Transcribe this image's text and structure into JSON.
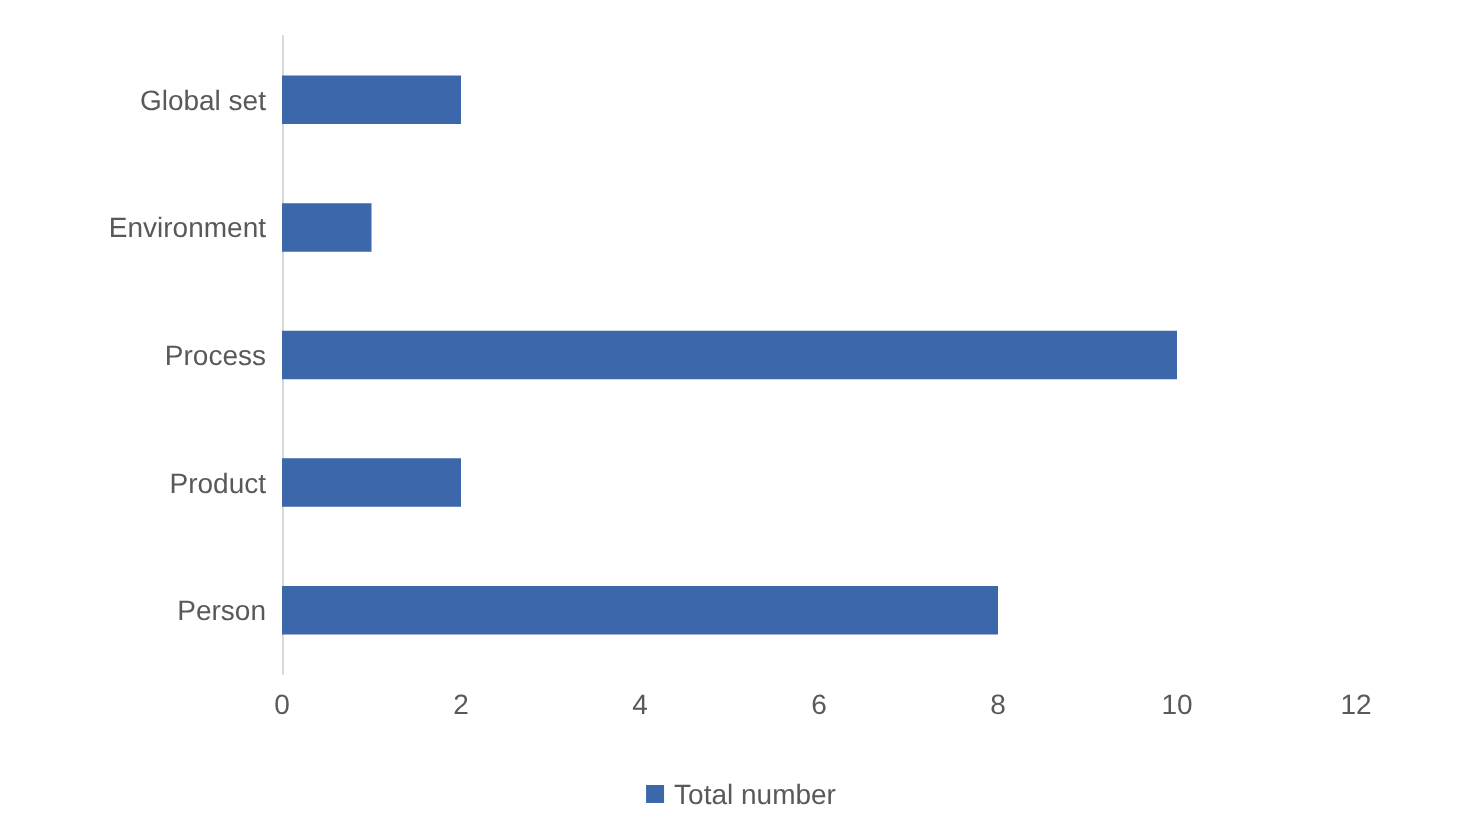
{
  "chart_data": {
    "type": "bar",
    "orientation": "horizontal",
    "categories": [
      "Global set",
      "Environment",
      "Process",
      "Product",
      "Person"
    ],
    "series": [
      {
        "name": "Total number",
        "color": "#3c67aa",
        "values": [
          2,
          1,
          10,
          2,
          8
        ]
      }
    ],
    "xlim": [
      0,
      12
    ],
    "xticks": [
      0,
      2,
      4,
      6,
      8,
      10,
      12
    ],
    "grid": false,
    "legend": "bottom"
  }
}
